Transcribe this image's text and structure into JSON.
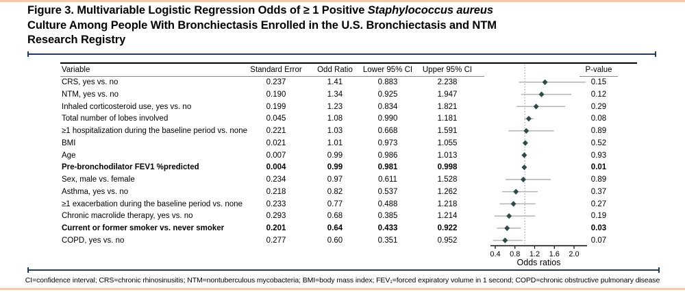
{
  "colors": {
    "accent_peach": "#f8cba4",
    "navy": "#1f3864",
    "diamond": "#2e4b48",
    "ci_line": "#b3b3b3",
    "reference_line": "#999999",
    "axis": "#000000"
  },
  "header": {
    "title_lines": [
      [
        {
          "t": "Figure 3. Multivariable Logistic Regression Odds of ≥ 1 Positive ",
          "i": false
        },
        {
          "t": "Staphylococcus aureus",
          "i": true
        }
      ],
      [
        {
          "t": "Culture Among People With Bronchiectasis Enrolled in the U.S. Bronchiectasis and NTM",
          "i": false
        }
      ],
      [
        {
          "t": "Research Registry",
          "i": false
        }
      ]
    ]
  },
  "table": {
    "headers": {
      "variable": "Variable",
      "se": "Standard Error",
      "or": "Odd Ratio",
      "lower": "Lower 95% CI",
      "upper": "Upper 95% CI",
      "pvalue": "P-value"
    }
  },
  "chart_data": {
    "type": "forest",
    "xlabel": "Odds ratios",
    "x_ticks": [
      "0.4",
      "0.8",
      "1.2",
      "1.6",
      "2.0"
    ],
    "x_range": [
      0.33,
      2.26
    ],
    "reference_line": 1.0,
    "legend_position": "none",
    "grid": false,
    "rows": [
      {
        "label": "CRS, yes vs. no",
        "se": "0.237",
        "or": "1.41",
        "lower": "0.883",
        "upper": "2.238",
        "p": "0.15",
        "bold": false
      },
      {
        "label": "NTM, yes vs. no",
        "se": "0.190",
        "or": "1.34",
        "lower": "0.925",
        "upper": "1.947",
        "p": "0.12",
        "bold": false
      },
      {
        "label": "Inhaled corticosteroid use, yes vs. no",
        "se": "0.199",
        "or": "1.23",
        "lower": "0.834",
        "upper": "1.821",
        "p": "0.29",
        "bold": false
      },
      {
        "label": "Total number of lobes involved",
        "se": "0.045",
        "or": "1.08",
        "lower": "0.990",
        "upper": "1.181",
        "p": "0.08",
        "bold": false
      },
      {
        "label": "≥1 hospitalization during the baseline period vs. none",
        "se": "0.221",
        "or": "1.03",
        "lower": "0.668",
        "upper": "1.591",
        "p": "0.89",
        "bold": false
      },
      {
        "label": "BMI",
        "se": "0.021",
        "or": "1.01",
        "lower": "0.973",
        "upper": "1.055",
        "p": "0.52",
        "bold": false
      },
      {
        "label": "Age",
        "se": "0.007",
        "or": "0.99",
        "lower": "0.986",
        "upper": "1.013",
        "p": "0.93",
        "bold": false
      },
      {
        "label": "Pre-bronchodilator FEV1 %predicted",
        "se": "0.004",
        "or": "0.99",
        "lower": "0.981",
        "upper": "0.998",
        "p": "0.01",
        "bold": true
      },
      {
        "label": "Sex, male vs. female",
        "se": "0.234",
        "or": "0.97",
        "lower": "0.611",
        "upper": "1.528",
        "p": "0.89",
        "bold": false
      },
      {
        "label": "Asthma, yes vs. no",
        "se": "0.218",
        "or": "0.82",
        "lower": "0.537",
        "upper": "1.262",
        "p": "0.37",
        "bold": false
      },
      {
        "label": "≥1 exacerbation during the baseline period vs. none",
        "se": "0.233",
        "or": "0.77",
        "lower": "0.488",
        "upper": "1.218",
        "p": "0.27",
        "bold": false
      },
      {
        "label": "Chronic macrolide therapy, yes vs. no",
        "se": "0.293",
        "or": "0.68",
        "lower": "0.385",
        "upper": "1.214",
        "p": "0.19",
        "bold": false
      },
      {
        "label": "Current or former smoker vs. never smoker",
        "se": "0.201",
        "or": "0.64",
        "lower": "0.433",
        "upper": "0.922",
        "p": "0.03",
        "bold": true
      },
      {
        "label": "COPD, yes vs. no",
        "se": "0.277",
        "or": "0.60",
        "lower": "0.351",
        "upper": "0.952",
        "p": "0.07",
        "bold": false
      }
    ]
  },
  "footnote": {
    "text": "CI=confidence interval; CRS=chronic rhinosinusitis; NTM=nontuberculous mycobacteria; BMI=body mass index; FEV₁=forced expiratory volume in 1 second; COPD=chronic obstructive pulmonary disease"
  }
}
